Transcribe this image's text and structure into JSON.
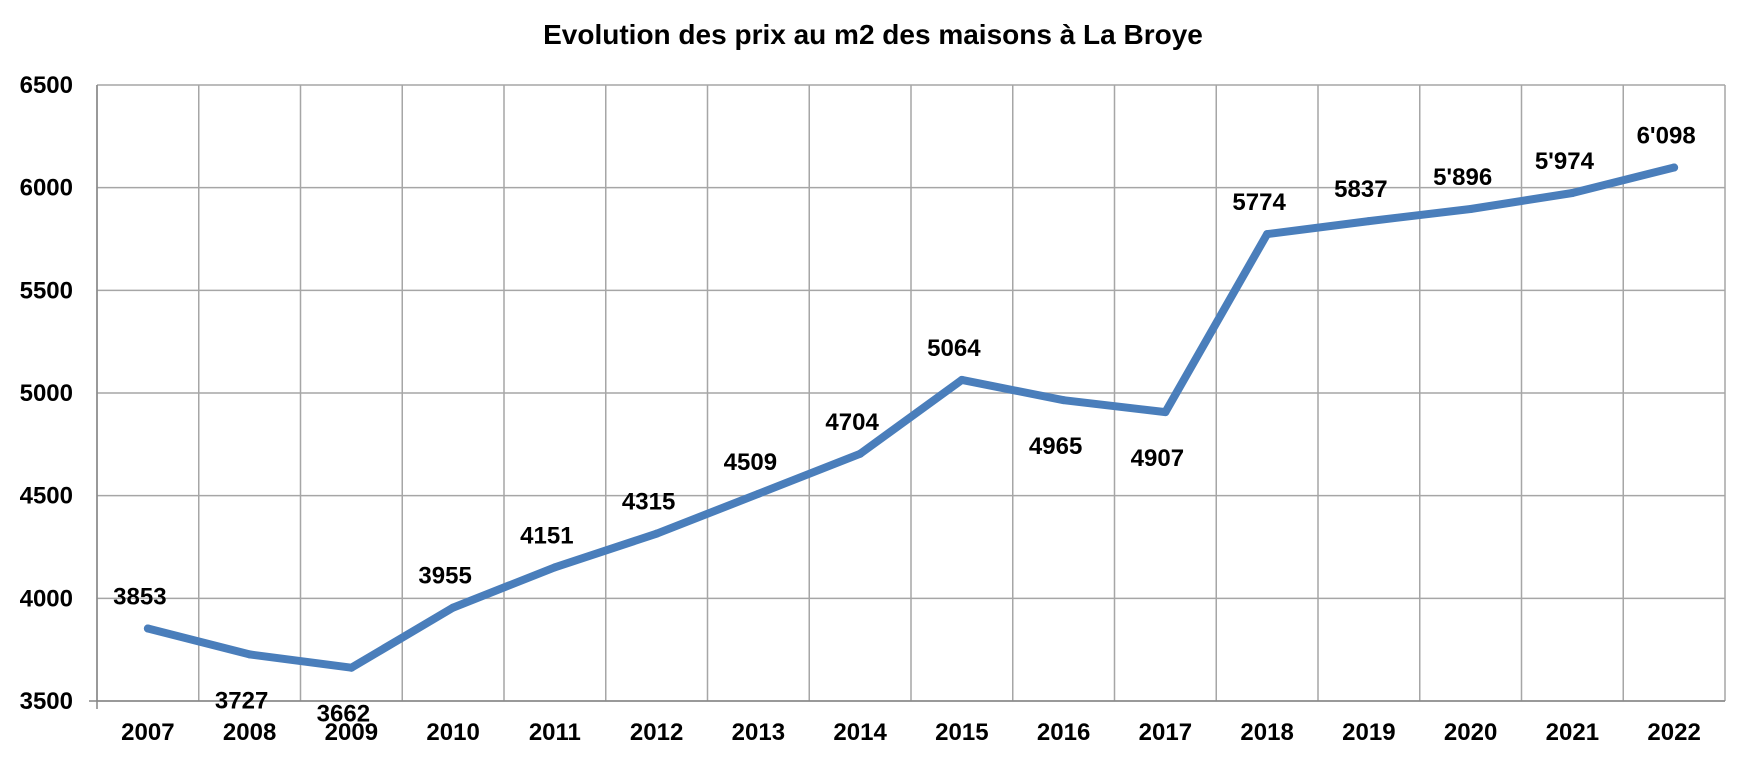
{
  "colors": {
    "line": "#4a7ebb",
    "grid": "#a6a6a6",
    "background": "#ffffff",
    "text": "#000000"
  },
  "chart_data": {
    "type": "line",
    "title": "Evolution des prix au m2 des maisons à La Broye",
    "xlabel": "",
    "ylabel": "",
    "grid": true,
    "legend": "none",
    "categories": [
      "2007",
      "2008",
      "2009",
      "2010",
      "2011",
      "2012",
      "2013",
      "2014",
      "2015",
      "2016",
      "2017",
      "2018",
      "2019",
      "2020",
      "2021",
      "2022"
    ],
    "values": [
      3853,
      3727,
      3662,
      3955,
      4151,
      4315,
      4509,
      4704,
      5064,
      4965,
      4907,
      5774,
      5837,
      5896,
      5974,
      6098
    ],
    "data_labels": [
      "3853",
      "3727",
      "3662",
      "3955",
      "4151",
      "4315",
      "4509",
      "4704",
      "5064",
      "4965",
      "4907",
      "5774",
      "5837",
      "5'896",
      "5'974",
      "6'098"
    ],
    "label_positions": [
      "above",
      "below",
      "below",
      "above",
      "above",
      "above",
      "above",
      "above",
      "above",
      "below",
      "below",
      "above",
      "above",
      "above",
      "above",
      "above"
    ],
    "ylim": [
      3500,
      6500
    ],
    "yticks": [
      "3500",
      "4000",
      "4500",
      "5000",
      "5500",
      "6000",
      "6500"
    ]
  }
}
